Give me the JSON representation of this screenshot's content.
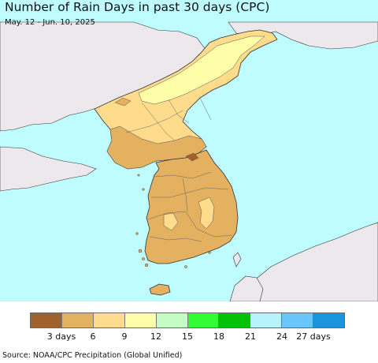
{
  "title": "Number of Rain Days in past 30 days (CPC)",
  "subtitle": "May. 12 - Jun. 10, 2025",
  "colors": {
    "sea": "#bffcff",
    "land_outside": "#ece8ec",
    "border": "#333333"
  },
  "legend": {
    "swatches": [
      "#a0612b",
      "#e3b160",
      "#fedc8b",
      "#fefea8",
      "#c4fdc4",
      "#33fc35",
      "#06c106",
      "#b7f3fd",
      "#69c6fd",
      "#1995dd"
    ],
    "tick_labels": [
      "3 days",
      "6",
      "9",
      "12",
      "15",
      "18",
      "21",
      "24",
      "27 days"
    ]
  },
  "source": "Source: NOAA/CPC Precipitation (Global Unified)"
}
